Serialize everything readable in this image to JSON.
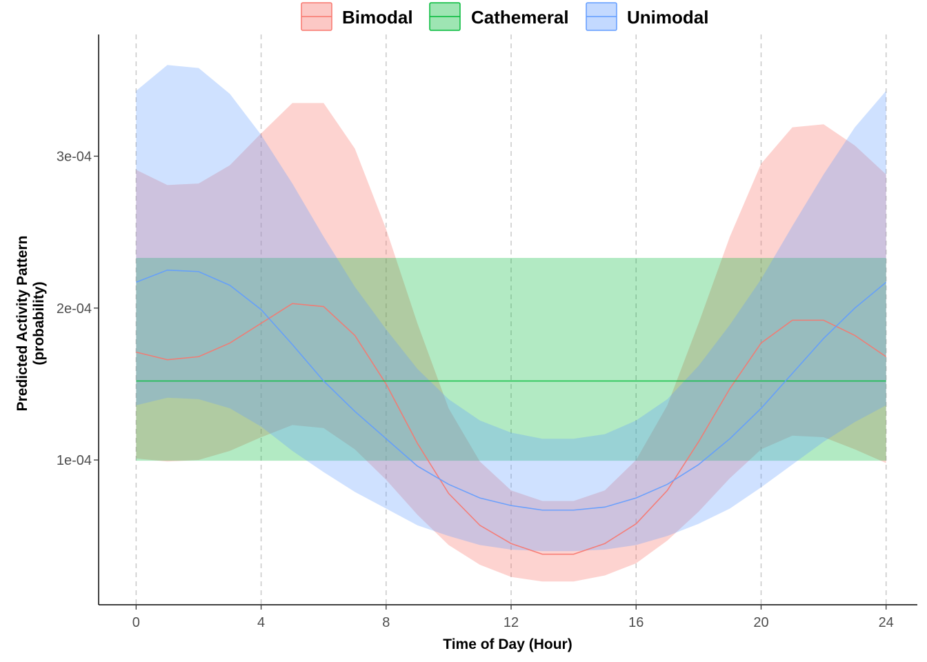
{
  "chart_data": {
    "type": "area",
    "title": "",
    "xlabel": "Time of Day (Hour)",
    "ylabel_line1": "Predicted Activity Pattern",
    "ylabel_line2": "(probability)",
    "xlim": [
      -1.2,
      25.0
    ],
    "ylim": [
      4.7e-06,
      0.0003801
    ],
    "x_ticks": [
      0,
      4,
      8,
      12,
      16,
      20,
      24
    ],
    "x_tick_labels": [
      "0",
      "4",
      "8",
      "12",
      "16",
      "20",
      "24"
    ],
    "y_ticks": [
      0.0001,
      0.0002,
      0.0003
    ],
    "y_tick_labels": [
      "1e-04",
      "2e-04",
      "3e-04"
    ],
    "vertical_gridlines": [
      0,
      4,
      8,
      12,
      16,
      20,
      24
    ],
    "grid": "dashed vertical lines at x ticks",
    "legend_position": "top",
    "x": [
      0,
      1,
      2,
      3,
      4,
      5,
      6,
      7,
      8,
      9,
      10,
      11,
      12,
      13,
      14,
      15,
      16,
      17,
      18,
      19,
      20,
      21,
      22,
      23,
      24
    ],
    "series": [
      {
        "name": "Bimodal",
        "color": "#f8766d",
        "fill": "#f8766d",
        "fill_opacity": 0.32,
        "mean": [
          0.000171,
          0.000166,
          0.000168,
          0.000177,
          0.00019,
          0.000203,
          0.000201,
          0.000182,
          0.00015,
          0.000111,
          7.8e-05,
          5.7e-05,
          4.5e-05,
          3.8e-05,
          3.8e-05,
          4.5e-05,
          5.8e-05,
          8e-05,
          0.000112,
          0.000147,
          0.000177,
          0.000192,
          0.000192,
          0.000182,
          0.000168
        ],
        "lower": [
          0.000101,
          9.9e-05,
          0.0001,
          0.000106,
          0.000115,
          0.000123,
          0.000121,
          0.000107,
          8.7e-05,
          6.4e-05,
          4.4e-05,
          3.1e-05,
          2.3e-05,
          2e-05,
          2e-05,
          2.4e-05,
          3.2e-05,
          4.7e-05,
          6.6e-05,
          8.8e-05,
          0.000107,
          0.000116,
          0.000115,
          0.000107,
          9.8e-05
        ],
        "upper": [
          0.000291,
          0.000281,
          0.000282,
          0.000294,
          0.000315,
          0.000335,
          0.000335,
          0.000305,
          0.000252,
          0.00019,
          0.000134,
          9.9e-05,
          8e-05,
          7.3e-05,
          7.3e-05,
          8e-05,
          0.0001,
          0.000136,
          0.00019,
          0.000247,
          0.000295,
          0.000319,
          0.000321,
          0.000307,
          0.000288
        ]
      },
      {
        "name": "Cathemeral",
        "color": "#00ba38",
        "fill": "#00ba38",
        "fill_opacity": 0.3,
        "mean": [
          0.000152,
          0.000152,
          0.000152,
          0.000152,
          0.000152,
          0.000152,
          0.000152,
          0.000152,
          0.000152,
          0.000152,
          0.000152,
          0.000152,
          0.000152,
          0.000152,
          0.000152,
          0.000152,
          0.000152,
          0.000152,
          0.000152,
          0.000152,
          0.000152,
          0.000152,
          0.000152,
          0.000152,
          0.000152
        ],
        "lower": [
          9.95e-05,
          9.95e-05,
          9.95e-05,
          9.95e-05,
          9.95e-05,
          9.95e-05,
          9.95e-05,
          9.95e-05,
          9.95e-05,
          9.95e-05,
          9.95e-05,
          9.95e-05,
          9.95e-05,
          9.95e-05,
          9.95e-05,
          9.95e-05,
          9.95e-05,
          9.95e-05,
          9.95e-05,
          9.95e-05,
          9.95e-05,
          9.95e-05,
          9.95e-05,
          9.95e-05,
          9.95e-05
        ],
        "upper": [
          0.000233,
          0.000233,
          0.000233,
          0.000233,
          0.000233,
          0.000233,
          0.000233,
          0.000233,
          0.000233,
          0.000233,
          0.000233,
          0.000233,
          0.000233,
          0.000233,
          0.000233,
          0.000233,
          0.000233,
          0.000233,
          0.000233,
          0.000233,
          0.000233,
          0.000233,
          0.000233,
          0.000233,
          0.000233
        ]
      },
      {
        "name": "Unimodal",
        "color": "#619cff",
        "fill": "#619cff",
        "fill_opacity": 0.3,
        "mean": [
          0.000217,
          0.000225,
          0.000224,
          0.000215,
          0.000199,
          0.000176,
          0.000152,
          0.000132,
          0.000114,
          9.6e-05,
          8.4e-05,
          7.5e-05,
          7e-05,
          6.7e-05,
          6.7e-05,
          6.9e-05,
          7.5e-05,
          8.4e-05,
          9.7e-05,
          0.000114,
          0.000134,
          0.000157,
          0.00018,
          0.0002,
          0.000217
        ],
        "lower": [
          0.000136,
          0.000141,
          0.00014,
          0.000134,
          0.000122,
          0.000106,
          9.2e-05,
          7.9e-05,
          6.8e-05,
          5.7e-05,
          5e-05,
          4.4e-05,
          4.1e-05,
          4e-05,
          4e-05,
          4.1e-05,
          4.4e-05,
          5e-05,
          5.8e-05,
          6.8e-05,
          8.2e-05,
          9.7e-05,
          0.000112,
          0.000125,
          0.000136
        ],
        "upper": [
          0.000343,
          0.00036,
          0.000358,
          0.000341,
          0.000314,
          0.000282,
          0.000247,
          0.000214,
          0.000186,
          0.00016,
          0.00014,
          0.000126,
          0.000118,
          0.000114,
          0.000114,
          0.000117,
          0.000126,
          0.00014,
          0.000162,
          0.000189,
          0.000219,
          0.000254,
          0.000288,
          0.000319,
          0.000343
        ]
      }
    ]
  }
}
